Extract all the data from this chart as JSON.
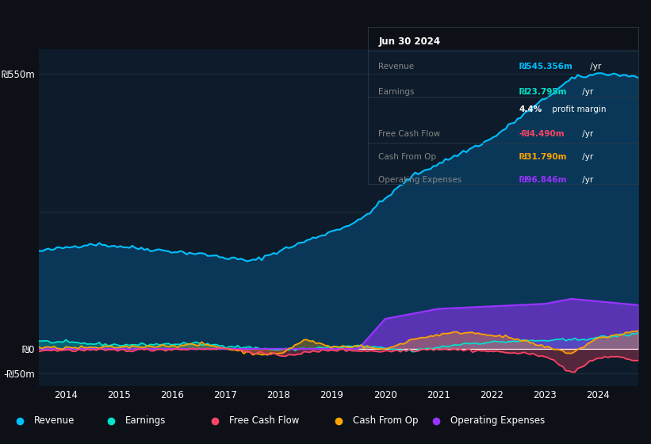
{
  "background_color": "#0d1117",
  "plot_bg_color": "#0d1b2a",
  "ylim": [
    -75,
    600
  ],
  "revenue_color": "#00bfff",
  "earnings_color": "#00e5cc",
  "fcf_color": "#ff4466",
  "cashfromop_color": "#ffa500",
  "opex_color": "#9933ff",
  "revenue_fill": "#0a3a5c",
  "info_box_title": "Jun 30 2024",
  "info_rows": [
    {
      "label": "Revenue",
      "value": "₪545.356m",
      "suffix": " /yr",
      "value_color": "#00bfff"
    },
    {
      "label": "Earnings",
      "value": "₪23.795m",
      "suffix": " /yr",
      "value_color": "#00e5cc"
    },
    {
      "label": "",
      "value": "4.4%",
      "suffix": " profit margin",
      "value_color": "#ffffff"
    },
    {
      "label": "Free Cash Flow",
      "value": "-₪4.490m",
      "suffix": " /yr",
      "value_color": "#ff4466"
    },
    {
      "label": "Cash From Op",
      "value": "₪31.790m",
      "suffix": " /yr",
      "value_color": "#ffa500"
    },
    {
      "label": "Operating Expenses",
      "value": "₪96.846m",
      "suffix": " /yr",
      "value_color": "#9933ff"
    }
  ],
  "legend_items": [
    {
      "label": "Revenue",
      "color": "#00bfff"
    },
    {
      "label": "Earnings",
      "color": "#00e5cc"
    },
    {
      "label": "Free Cash Flow",
      "color": "#ff4466"
    },
    {
      "label": "Cash From Op",
      "color": "#ffa500"
    },
    {
      "label": "Operating Expenses",
      "color": "#9933ff"
    }
  ],
  "divider_color": "#2a3a4a",
  "label_color": "#888888",
  "year_start": 2013.5,
  "year_end": 2024.75
}
